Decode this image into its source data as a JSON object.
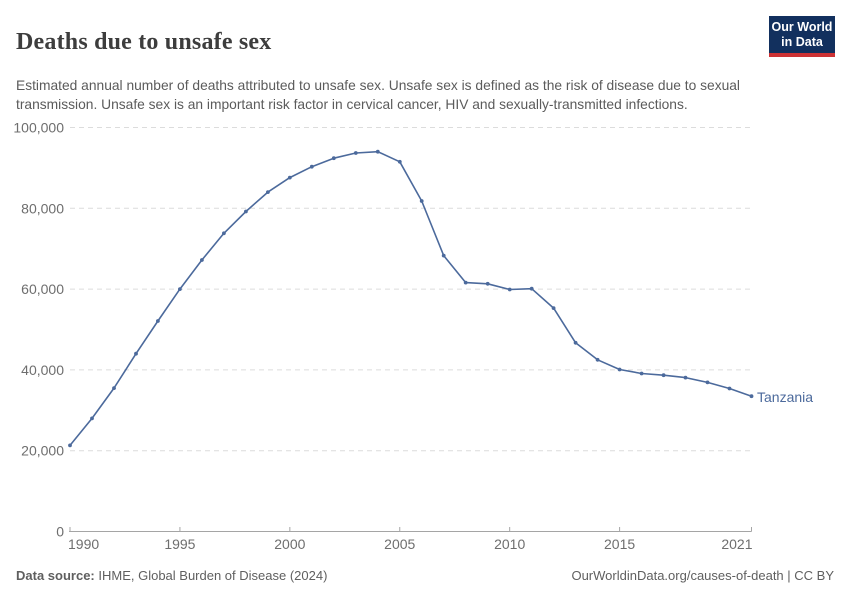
{
  "header": {
    "title": "Deaths due to unsafe sex",
    "subtitle": "Estimated annual number of deaths attributed to unsafe sex. Unsafe sex is defined as the risk of disease due to sexual transmission. Unsafe sex is an important risk factor in cervical cancer, HIV and sexually-transmitted infections.",
    "logo": {
      "line1": "Our World",
      "line2": "in Data",
      "bg_color": "#12305e",
      "accent_color": "#cd3235"
    }
  },
  "chart_data": {
    "type": "line",
    "title": "Deaths due to unsafe sex",
    "xlabel": "",
    "ylabel": "",
    "x": [
      1990,
      1991,
      1992,
      1993,
      1994,
      1995,
      1996,
      1997,
      1998,
      1999,
      2000,
      2001,
      2002,
      2003,
      2004,
      2005,
      2006,
      2007,
      2008,
      2009,
      2010,
      2011,
      2012,
      2013,
      2014,
      2015,
      2016,
      2017,
      2018,
      2019,
      2020,
      2021
    ],
    "series": [
      {
        "name": "Tanzania",
        "color": "#4C6A9C",
        "values": [
          21300,
          28000,
          35500,
          44000,
          52100,
          60000,
          67200,
          73800,
          79200,
          84000,
          87600,
          90300,
          92400,
          93700,
          94000,
          91500,
          81800,
          68300,
          61600,
          61300,
          59900,
          60100,
          55300,
          46700,
          42500,
          40100,
          39100,
          38700,
          38100,
          36900,
          35400,
          33500
        ]
      }
    ],
    "xlim": [
      1990,
      2021
    ],
    "ylim": [
      0,
      100000
    ],
    "xticks": [
      1990,
      1995,
      2000,
      2005,
      2010,
      2015,
      2021
    ],
    "yticks": [
      0,
      20000,
      40000,
      60000,
      80000,
      100000
    ],
    "grid": "horizontal dashed",
    "legend": "end-of-line label",
    "marker": "point"
  },
  "footer": {
    "data_source_label": "Data source:",
    "data_source_value": " IHME, Global Burden of Disease (2024)",
    "credit": "OurWorldinData.org/causes-of-death | CC BY"
  }
}
